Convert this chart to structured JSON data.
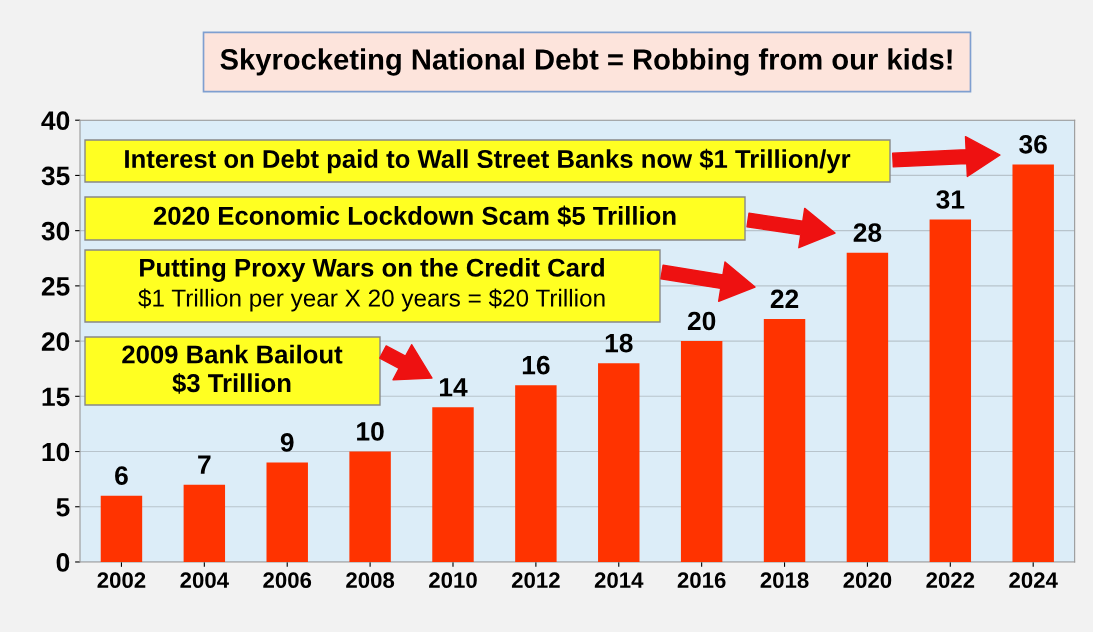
{
  "chart_data": {
    "type": "bar",
    "title": "Skyrocketing National Debt = Robbing from our kids!",
    "categories": [
      "2002",
      "2004",
      "2006",
      "2008",
      "2010",
      "2012",
      "2014",
      "2016",
      "2018",
      "2020",
      "2022",
      "2024"
    ],
    "values": [
      6,
      7,
      9,
      10,
      14,
      16,
      18,
      20,
      22,
      28,
      31,
      36
    ],
    "color": "#ff3300",
    "ylim": [
      0,
      40
    ],
    "yticks": [
      0,
      5,
      10,
      15,
      20,
      25,
      30,
      35,
      40
    ],
    "grid": "y",
    "data_labels": true,
    "annotations": [
      "Interest on Debt paid to Wall Street Banks now $1 Trillion/yr",
      "2020 Economic Lockdown Scam $5 Trillion",
      "Putting Proxy Wars on the Credit Card",
      "$1 Trillion per year X 20 years = $20 Trillion",
      "2009 Bank Bailout\n$3 Trillion"
    ]
  }
}
